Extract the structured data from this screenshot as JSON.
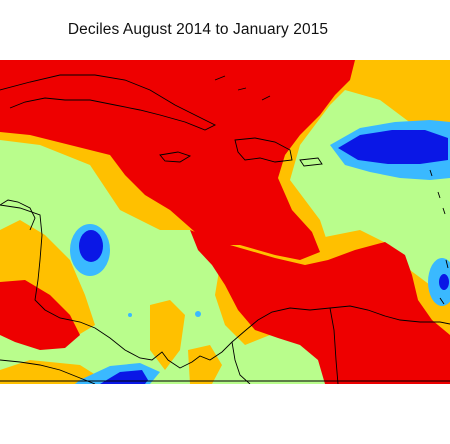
{
  "title": "Deciles August 2014 to January 2015",
  "colors": {
    "very_much_above": "#ee0000",
    "above": "#ffc000",
    "average": "#b9fd8c",
    "below": "#3ab9ff",
    "very_much_below": "#0a17e6",
    "coastline": "#000000",
    "background": "#ffffff"
  }
}
